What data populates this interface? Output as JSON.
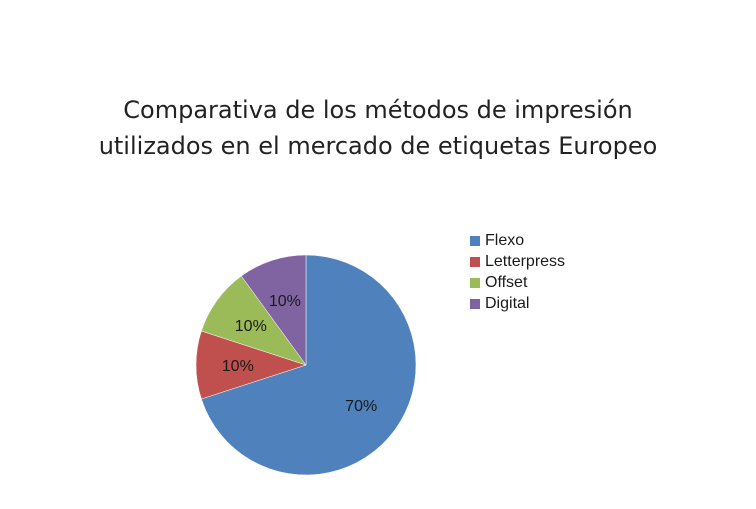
{
  "chart_data": {
    "type": "pie",
    "title_lines": [
      "Comparativa de los métodos de impresión",
      "utilizados en el mercado de etiquetas Europeo"
    ],
    "categories": [
      "Flexo",
      "Letterpress",
      "Offset",
      "Digital"
    ],
    "values": [
      70,
      10,
      10,
      10
    ],
    "data_labels": [
      "70%",
      "10%",
      "10%",
      "10%"
    ],
    "colors": [
      "#4F81BD",
      "#C0504D",
      "#9BBB59",
      "#8064A2"
    ],
    "start_angle_deg": 0,
    "direction": "clockwise",
    "legend_position": "right"
  }
}
